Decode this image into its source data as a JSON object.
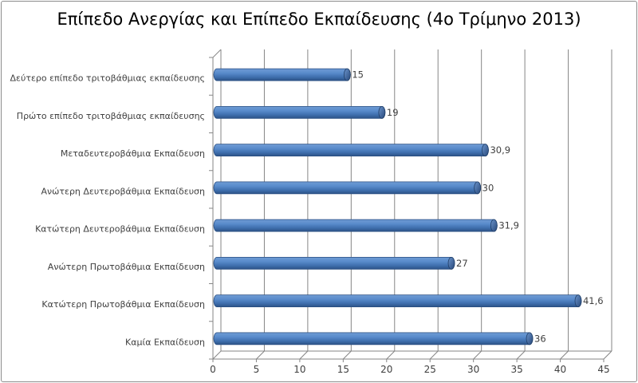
{
  "chart_data": {
    "type": "bar",
    "orientation": "horizontal",
    "style": "3d-cylinder",
    "title": "Επίπεδο Ανεργίας και Επίπεδο Εκπαίδευσης (4ο Τρίμηνο 2013)",
    "categories": [
      "Καμία Εκπαίδευση",
      "Κατώτερη Πρωτοβάθμια Εκπαίδευση",
      "Ανώτερη Πρωτοβάθμια Εκπαίδευση",
      "Κατώτερη Δευτεροβάθμια Εκπαίδευση",
      "Ανώτερη Δευτεροβάθμια Εκπαίδευση",
      "Μεταδευτεροβάθμια Εκπαίδευση",
      "Πρώτο επίπεδο τριτοβάθμιας εκπαίδευσης",
      "Δεύτερο επίπεδο τριτοβάθμιας εκπαίδευσης"
    ],
    "values": [
      36,
      41.6,
      27,
      31.9,
      30,
      30.9,
      19,
      15
    ],
    "data_labels": [
      "36",
      "41,6",
      "27",
      "31,9",
      "30",
      "30,9",
      "19",
      "15"
    ],
    "xlim": [
      0,
      45
    ],
    "xticks": [
      "0",
      "5",
      "10",
      "15",
      "20",
      "25",
      "30",
      "35",
      "40",
      "45"
    ],
    "grid": true,
    "legend": "none",
    "bar_color": "#4a7ebb",
    "grid_color": "#868686"
  }
}
